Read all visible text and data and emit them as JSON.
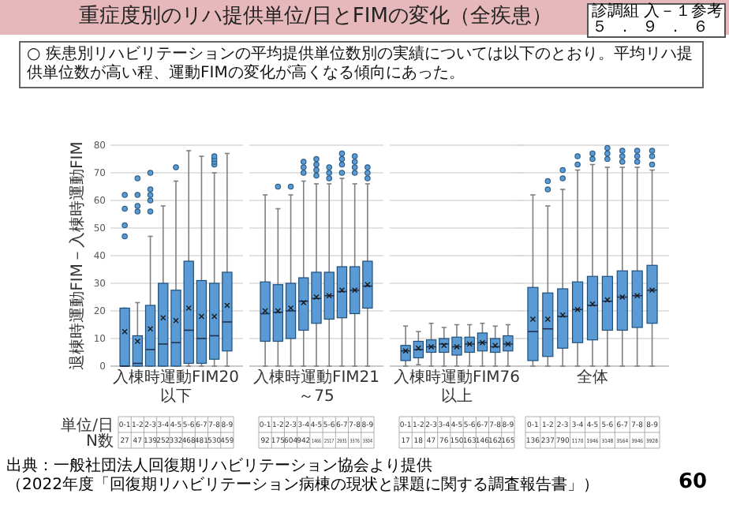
{
  "chart_data": [
    {
      "type": "other",
      "title": "重症度別のリハ提供単位/日とFIMの変化（全疾患）",
      "subtitle": "○ 疾患別リハビリテーションの平均提供単位数別の実績については以下のとおり。平均リハ提供単位数が高い程、運動FIMの変化が高くなる傾向にあった。",
      "annotations": [
        "診調組 入－１参考",
        "５．９．６",
        "出典：一般社団法人回復期リハビリテーション協会より提供",
        "（2022年度「回復期リハビリテーション病棟の現状と課題に関する調査報告書」）",
        "60"
      ]
    },
    {
      "type": "box",
      "xlabel": "入棟時運動FIM20以下",
      "ylabel": "退棟時運動FIM－入棟時運動FIM",
      "color": "#5b9bd5",
      "ylim": [
        0,
        80
      ],
      "yticks": [
        0,
        10,
        20,
        30,
        40,
        50,
        60,
        70,
        80
      ],
      "grid": "y",
      "categories": [
        "0-1",
        "1-2",
        "2-3",
        "3-4",
        "4-5",
        "5-6",
        "6-7",
        "7-8",
        "8-9"
      ],
      "annotations": [
        "単位/日",
        "N数",
        "27",
        "47",
        "139",
        "252",
        "332",
        "468",
        "481",
        "530",
        "459"
      ],
      "boxes": [
        {
          "low": 0,
          "q1": 0,
          "median": 0,
          "q3": 21,
          "high": 21,
          "mean": 12.5,
          "outliers": [
            47,
            51,
            57,
            62
          ]
        },
        {
          "low": 0,
          "q1": 0,
          "median": 1,
          "q3": 11,
          "high": 23,
          "mean": 9,
          "outliers": [
            56,
            58,
            62,
            68
          ]
        },
        {
          "low": 0,
          "q1": 0,
          "median": 6,
          "q3": 22,
          "high": 47,
          "mean": 13.5,
          "outliers": [
            56,
            60,
            62,
            64,
            70
          ]
        },
        {
          "low": 0,
          "q1": 0,
          "median": 8,
          "q3": 30,
          "high": 58,
          "mean": 17.5
        },
        {
          "low": 0,
          "q1": 0,
          "median": 8.5,
          "q3": 27.5,
          "high": 67,
          "mean": 16.5,
          "outliers": [
            72
          ]
        },
        {
          "low": 0,
          "q1": 1,
          "median": 13,
          "q3": 38,
          "high": 78,
          "mean": 21
        },
        {
          "low": 0,
          "q1": 1,
          "median": 10,
          "q3": 31,
          "high": 76,
          "mean": 18
        },
        {
          "low": 0,
          "q1": 2.5,
          "median": 11,
          "q3": 30,
          "high": 70,
          "mean": 18,
          "outliers": [
            73,
            74,
            75,
            76
          ]
        },
        {
          "low": 0,
          "q1": 5.5,
          "median": 16,
          "q3": 34,
          "high": 77,
          "mean": 22
        }
      ]
    },
    {
      "type": "box",
      "xlabel": "入棟時運動FIM21～75",
      "color": "#5b9bd5",
      "ylim": [
        0,
        80
      ],
      "yticks": [
        0,
        10,
        20,
        30,
        40,
        50,
        60,
        70,
        80
      ],
      "grid": "y",
      "tick_labels": "x",
      "categories": [
        "0-1",
        "1-2",
        "2-3",
        "3-4",
        "4-5",
        "5-6",
        "6-7",
        "7-8",
        "8-9"
      ],
      "annotations": [
        "92",
        "175",
        "604",
        "942",
        "1466",
        "2517",
        "2935",
        "3376",
        "3304"
      ],
      "boxes": [
        {
          "low": 0,
          "q1": 9,
          "median": 19,
          "q3": 30.5,
          "high": 62,
          "mean": 20
        },
        {
          "low": 0,
          "q1": 9,
          "median": 19.5,
          "q3": 29.5,
          "high": 57,
          "mean": 20,
          "outliers": [
            65
          ]
        },
        {
          "low": 0,
          "q1": 10,
          "median": 20,
          "q3": 30,
          "high": 62,
          "mean": 21,
          "outliers": [
            65
          ]
        },
        {
          "low": 0,
          "q1": 13,
          "median": 23.5,
          "q3": 32,
          "high": 67,
          "mean": 23,
          "outliers": [
            70,
            72,
            74
          ]
        },
        {
          "low": 0,
          "q1": 15.5,
          "median": 24.5,
          "q3": 34,
          "high": 66,
          "mean": 25,
          "outliers": [
            69,
            71,
            73,
            75
          ]
        },
        {
          "low": 0,
          "q1": 17,
          "median": 25.5,
          "q3": 34,
          "high": 66,
          "mean": 25.5,
          "outliers": [
            68,
            70,
            72
          ]
        },
        {
          "low": 0,
          "q1": 17.5,
          "median": 27,
          "q3": 36,
          "high": 68,
          "mean": 27.5,
          "outliers": [
            70,
            73,
            75,
            77
          ]
        },
        {
          "low": 0,
          "q1": 19,
          "median": 27.5,
          "q3": 36,
          "high": 66,
          "mean": 27.5,
          "outliers": [
            70,
            72,
            74,
            76
          ]
        },
        {
          "low": 0,
          "q1": 21,
          "median": 29,
          "q3": 38,
          "high": 66,
          "mean": 29.5,
          "outliers": [
            68,
            70,
            72
          ]
        }
      ]
    },
    {
      "type": "box",
      "xlabel": "入棟時運動FIM76以上",
      "color": "#5b9bd5",
      "ylim": [
        0,
        80
      ],
      "yticks": [
        0,
        10,
        20,
        30,
        40,
        50,
        60,
        70,
        80
      ],
      "grid": "y",
      "tick_labels": "x",
      "categories": [
        "0-1",
        "1-2",
        "2-3",
        "3-4",
        "4-5",
        "5-6",
        "6-7",
        "7-8",
        "8-9"
      ],
      "annotations": [
        "17",
        "18",
        "47",
        "76",
        "150",
        "163",
        "146",
        "162",
        "165"
      ],
      "boxes": [
        {
          "low": 0,
          "q1": 2,
          "median": 5.5,
          "q3": 7.5,
          "high": 14.5,
          "mean": 5.5
        },
        {
          "low": 0.5,
          "q1": 3,
          "median": 6,
          "q3": 9,
          "high": 12.5,
          "mean": 6.5
        },
        {
          "low": 0,
          "q1": 5,
          "median": 7,
          "q3": 9.5,
          "high": 15.5,
          "mean": 7
        },
        {
          "low": 0,
          "q1": 5,
          "median": 8,
          "q3": 10,
          "high": 14,
          "mean": 7.5
        },
        {
          "low": 0,
          "q1": 4,
          "median": 7,
          "q3": 10.5,
          "high": 15,
          "mean": 7
        },
        {
          "low": 0,
          "q1": 5,
          "median": 8,
          "q3": 10.5,
          "high": 15,
          "mean": 8
        },
        {
          "low": 0,
          "q1": 5.5,
          "median": 8.5,
          "q3": 12,
          "high": 15.5,
          "mean": 8.5
        },
        {
          "low": 0,
          "q1": 5,
          "median": 7,
          "q3": 10,
          "high": 14.5,
          "mean": 7.5
        },
        {
          "low": 0,
          "q1": 5.5,
          "median": 8,
          "q3": 11,
          "high": 15,
          "mean": 8
        }
      ]
    },
    {
      "type": "box",
      "xlabel": "全体",
      "color": "#5b9bd5",
      "ylim": [
        0,
        80
      ],
      "yticks": [
        0,
        10,
        20,
        30,
        40,
        50,
        60,
        70,
        80
      ],
      "grid": "y",
      "tick_labels": "x",
      "categories": [
        "0-1",
        "1-2",
        "2-3",
        "3-4",
        "4-5",
        "5-6",
        "6-7",
        "7-8",
        "8-9"
      ],
      "annotations": [
        "136",
        "237",
        "790",
        "1170",
        "1946",
        "3148",
        "3564",
        "3946",
        "3928"
      ],
      "boxes": [
        {
          "low": 0,
          "q1": 2,
          "median": 12.5,
          "q3": 28.5,
          "high": 62,
          "mean": 17
        },
        {
          "low": 0,
          "q1": 3.5,
          "median": 13.5,
          "q3": 26.5,
          "high": 58,
          "mean": 17,
          "outliers": [
            64,
            67
          ]
        },
        {
          "low": 0,
          "q1": 6.5,
          "median": 18,
          "q3": 28,
          "high": 64,
          "mean": 18.5,
          "outliers": [
            68,
            71
          ]
        },
        {
          "low": 0,
          "q1": 8.5,
          "median": 20.5,
          "q3": 30.5,
          "high": 71,
          "mean": 20.5,
          "outliers": [
            73,
            76
          ]
        },
        {
          "low": 0,
          "q1": 9.5,
          "median": 22,
          "q3": 32.5,
          "high": 73,
          "mean": 22.5,
          "outliers": [
            75,
            77
          ]
        },
        {
          "low": 0,
          "q1": 13,
          "median": 23.5,
          "q3": 32.5,
          "high": 72,
          "mean": 24,
          "outliers": [
            75,
            77,
            79
          ]
        },
        {
          "low": 0,
          "q1": 13,
          "median": 25,
          "q3": 34.5,
          "high": 72,
          "mean": 25,
          "outliers": [
            74,
            76,
            78
          ]
        },
        {
          "low": 0,
          "q1": 14,
          "median": 25.5,
          "q3": 34.5,
          "high": 72,
          "mean": 25.5,
          "outliers": [
            74,
            76,
            78
          ]
        },
        {
          "low": 0,
          "q1": 15.5,
          "median": 27.5,
          "q3": 36.5,
          "high": 71,
          "mean": 27.5,
          "outliers": [
            73,
            76,
            78
          ]
        }
      ]
    }
  ]
}
